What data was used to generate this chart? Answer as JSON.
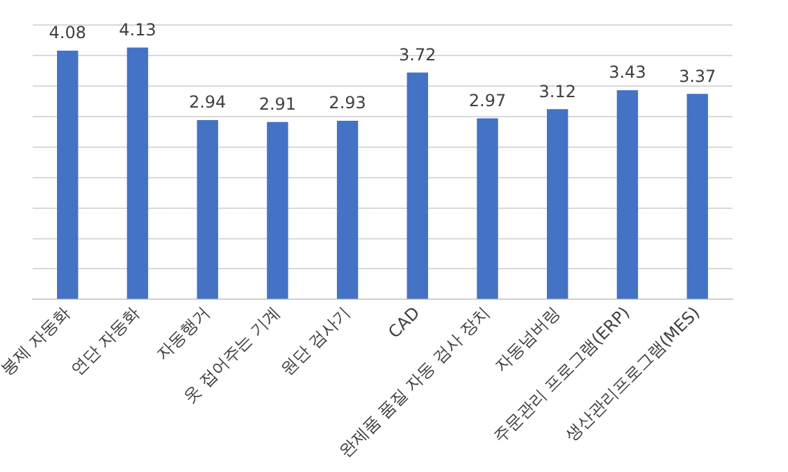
{
  "chart_data": {
    "type": "bar",
    "categories": [
      "봉제 자동화",
      "연단 자동화",
      "자동행거",
      "옷 접어주는 기계",
      "원단 검사기",
      "CAD",
      "완제품 품질 자동 검사 장치",
      "자동넘버링",
      "주문관리 프로그램(ERP)",
      "생산관리프로그램(MES)"
    ],
    "values": [
      4.08,
      4.13,
      2.94,
      2.91,
      2.93,
      3.72,
      2.97,
      3.12,
      3.43,
      3.37
    ],
    "color": "#4472c4",
    "ylim": [
      0,
      4.5
    ],
    "yticks": [
      {
        "value": 0,
        "label": null
      },
      {
        "value": 0.5,
        "label": null
      },
      {
        "value": 1,
        "label": null
      },
      {
        "value": 1.5,
        "label": null
      },
      {
        "value": 2,
        "label": null
      },
      {
        "value": 2.5,
        "label": null
      },
      {
        "value": 3,
        "label": null
      },
      {
        "value": 3.5,
        "label": null
      },
      {
        "value": 4,
        "label": null
      },
      {
        "value": 4.5,
        "label": null
      }
    ],
    "tick_labels": "x",
    "grid": "y",
    "data_labels": true
  }
}
